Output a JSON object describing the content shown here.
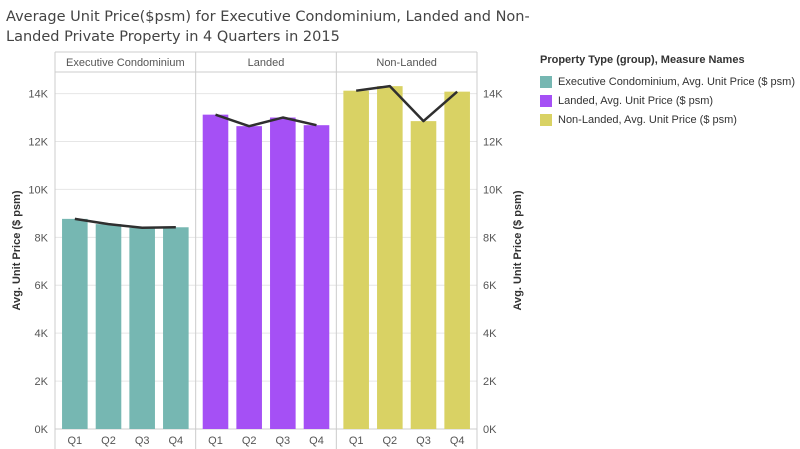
{
  "chart_data": {
    "type": "bar",
    "title": "Average Unit Price($psm) for Executive Condominium, Landed and Non-Landed Private Property in 4 Quarters in  2015",
    "panels": [
      "Executive Condominium",
      "Landed",
      "Non-Landed"
    ],
    "categories": [
      "Q1",
      "Q2",
      "Q3",
      "Q4"
    ],
    "series": [
      {
        "name": "Executive Condominium, Avg. Unit Price ($ psm)",
        "panel": "Executive Condominium",
        "color": "#76b7b2",
        "values": [
          8770,
          8550,
          8400,
          8420
        ]
      },
      {
        "name": "Landed, Avg. Unit Price ($ psm)",
        "panel": "Landed",
        "color": "#a550f5",
        "values": [
          13120,
          12640,
          13000,
          12680
        ]
      },
      {
        "name": "Non-Landed, Avg. Unit Price ($ psm)",
        "panel": "Non-Landed",
        "color": "#d9d264",
        "values": [
          14120,
          14310,
          12850,
          14080
        ]
      }
    ],
    "line_overlay": true,
    "ylabel_left": "Avg. Unit Price ($ psm)",
    "ylabel_right": "Avg. Unit Price ($ psm)",
    "yticks": [
      "0K",
      "2K",
      "4K",
      "6K",
      "8K",
      "10K",
      "12K",
      "14K"
    ],
    "ytick_values": [
      0,
      2000,
      4000,
      6000,
      8000,
      10000,
      12000,
      14000
    ],
    "ylim": [
      0,
      14900
    ],
    "legend_title": "Property Type (group), Measure Names",
    "legend_position": "right"
  },
  "colors": {
    "line": "#2f2f2f",
    "grid": "#e6e6e6",
    "axis": "#cccccc",
    "text": "#555555"
  }
}
